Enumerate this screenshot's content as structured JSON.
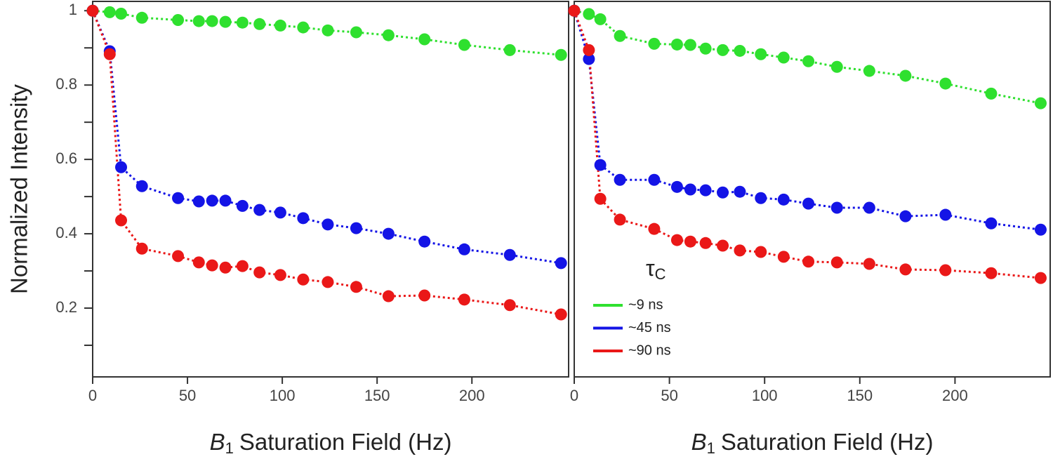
{
  "chart_data": [
    {
      "type": "line",
      "y_label": "Normalized Intensity",
      "x_label": {
        "symbol": "B",
        "subscript": "1",
        "text": "Saturation Field (Hz)"
      },
      "x": [
        0,
        9,
        15,
        26,
        45,
        56,
        63,
        70,
        79,
        88,
        99,
        111,
        124,
        139,
        156,
        175,
        196,
        220,
        247
      ],
      "xlim": [
        0,
        251
      ],
      "xticks": [
        0,
        50,
        100,
        150,
        200
      ],
      "ylim": [
        0.015,
        1.025
      ],
      "yticks": [
        0.2,
        0.4,
        0.6,
        0.8,
        1.0
      ],
      "yticks_minor": [
        0.1,
        0.3,
        0.5,
        0.7,
        0.9
      ],
      "series": [
        {
          "color": "#2fe02f",
          "values": [
            1.0,
            0.996,
            0.992,
            0.981,
            0.975,
            0.972,
            0.972,
            0.97,
            0.968,
            0.964,
            0.96,
            0.955,
            0.947,
            0.942,
            0.934,
            0.923,
            0.908,
            0.894,
            0.881
          ]
        },
        {
          "color": "#1414e6",
          "values": [
            1.0,
            0.891,
            0.579,
            0.528,
            0.496,
            0.487,
            0.489,
            0.489,
            0.475,
            0.464,
            0.457,
            0.442,
            0.425,
            0.415,
            0.4,
            0.379,
            0.358,
            0.343,
            0.321
          ]
        },
        {
          "color": "#ea1818",
          "values": [
            1.0,
            0.883,
            0.436,
            0.36,
            0.34,
            0.323,
            0.315,
            0.309,
            0.313,
            0.296,
            0.289,
            0.277,
            0.27,
            0.257,
            0.232,
            0.234,
            0.223,
            0.208,
            0.183
          ]
        }
      ]
    },
    {
      "type": "line",
      "x_label": {
        "symbol": "B",
        "subscript": "1",
        "text": "Saturation Field (Hz)"
      },
      "x": [
        0,
        7.7,
        13.7,
        24,
        42,
        54,
        61,
        69,
        78,
        87,
        98,
        110,
        123,
        138,
        155,
        174,
        195,
        219,
        245
      ],
      "xlim": [
        0,
        250
      ],
      "xticks": [
        0,
        50,
        100,
        150,
        200
      ],
      "ylim": [
        0.015,
        1.025
      ],
      "legend": "lower left",
      "legend_title": {
        "symbol": "τ",
        "subscript": "C"
      },
      "series": [
        {
          "name": "~9 ns",
          "color": "#2fe02f",
          "values": [
            1.0,
            0.991,
            0.977,
            0.932,
            0.911,
            0.909,
            0.908,
            0.898,
            0.894,
            0.892,
            0.883,
            0.874,
            0.864,
            0.849,
            0.838,
            0.825,
            0.804,
            0.777,
            0.751
          ]
        },
        {
          "name": "~45 ns",
          "color": "#1414e6",
          "values": [
            1.0,
            0.87,
            0.585,
            0.545,
            0.545,
            0.526,
            0.519,
            0.517,
            0.511,
            0.513,
            0.496,
            0.492,
            0.481,
            0.47,
            0.47,
            0.447,
            0.451,
            0.428,
            0.411
          ]
        },
        {
          "name": "~90 ns",
          "color": "#ea1818",
          "values": [
            1.0,
            0.894,
            0.494,
            0.438,
            0.413,
            0.383,
            0.379,
            0.375,
            0.368,
            0.355,
            0.351,
            0.338,
            0.325,
            0.323,
            0.319,
            0.304,
            0.302,
            0.294,
            0.281
          ]
        }
      ]
    }
  ]
}
